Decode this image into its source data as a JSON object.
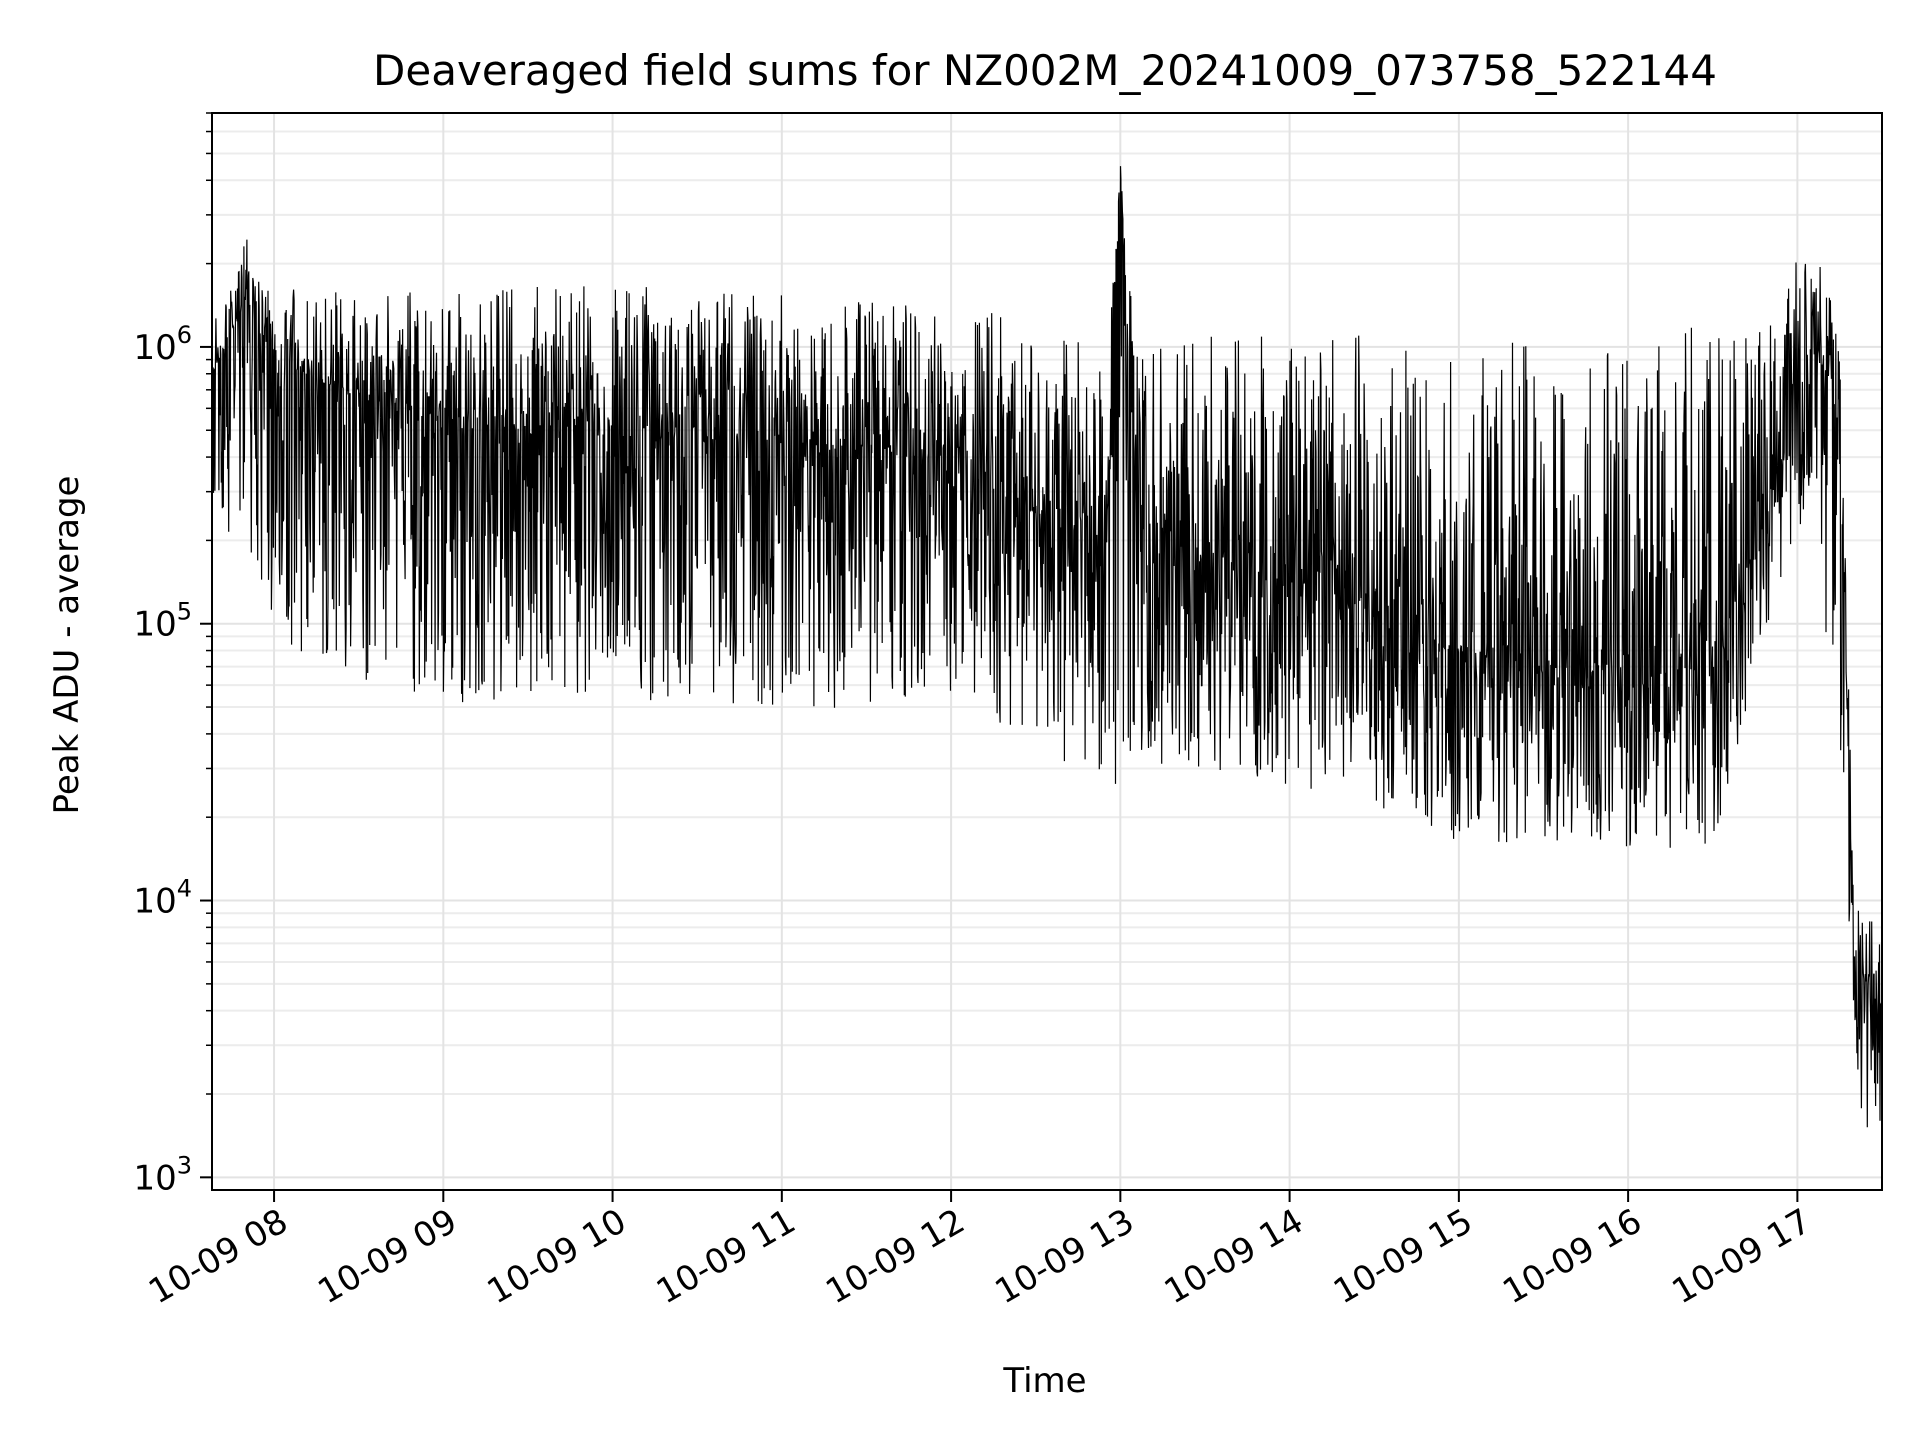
{
  "chart_data": {
    "type": "line",
    "title": "Deaveraged field sums for NZ002M_20241009_073758_522144",
    "xlabel": "Time",
    "ylabel": "Peak ADU - average",
    "y_scale": "log",
    "ylim": [
      900,
      7000000
    ],
    "xlim": [
      "2024-10-09 07:38",
      "2024-10-09 17:30"
    ],
    "x_ticks": [
      "10-09 08",
      "10-09 09",
      "10-09 10",
      "10-09 11",
      "10-09 12",
      "10-09 13",
      "10-09 14",
      "10-09 15",
      "10-09 16",
      "10-09 17"
    ],
    "y_ticks": [
      {
        "base": "10",
        "exp": "3",
        "value": 1000
      },
      {
        "base": "10",
        "exp": "4",
        "value": 10000
      },
      {
        "base": "10",
        "exp": "5",
        "value": 100000
      },
      {
        "base": "10",
        "exp": "6",
        "value": 1000000
      }
    ],
    "grid": true,
    "line_color": "#000000",
    "series": [
      {
        "x": [
          "2024-10-09 07:38",
          "2024-10-09 07:50",
          "2024-10-09 08:00",
          "2024-10-09 08:30",
          "2024-10-09 09:00",
          "2024-10-09 09:30",
          "2024-10-09 10:00",
          "2024-10-09 10:30",
          "2024-10-09 11:00",
          "2024-10-09 11:30",
          "2024-10-09 12:00",
          "2024-10-09 12:30",
          "2024-10-09 12:55",
          "2024-10-09 13:00",
          "2024-10-09 13:05",
          "2024-10-09 13:30",
          "2024-10-09 14:00",
          "2024-10-09 14:30",
          "2024-10-09 15:00",
          "2024-10-09 15:30",
          "2024-10-09 16:00",
          "2024-10-09 16:30",
          "2024-10-09 16:55",
          "2024-10-09 17:05",
          "2024-10-09 17:15",
          "2024-10-09 17:20",
          "2024-10-09 17:30"
        ],
        "y": [
          800000,
          1400000,
          900000,
          650000,
          550000,
          500000,
          480000,
          450000,
          430000,
          420000,
          380000,
          250000,
          180000,
          4500000,
          250000,
          170000,
          130000,
          100000,
          80000,
          70000,
          65000,
          70000,
          400000,
          1200000,
          500000,
          6000,
          4000
        ],
        "low": [
          300000,
          150000,
          90000,
          60000,
          50000,
          55000,
          52000,
          50000,
          45000,
          48000,
          55000,
          35000,
          25000,
          25000,
          30000,
          28000,
          25000,
          22000,
          16000,
          16000,
          15000,
          15000,
          150000,
          300000,
          30000,
          1400,
          1400
        ],
        "high": [
          1200000,
          2500000,
          1700000,
          1600000,
          1600000,
          1700000,
          1700000,
          1600000,
          1600000,
          1500000,
          1500000,
          1200000,
          1000000,
          4500000,
          1100000,
          1100000,
          1100000,
          1100000,
          1000000,
          1100000,
          1100000,
          1200000,
          1700000,
          2500000,
          1200000,
          10000,
          9000
        ]
      }
    ]
  }
}
